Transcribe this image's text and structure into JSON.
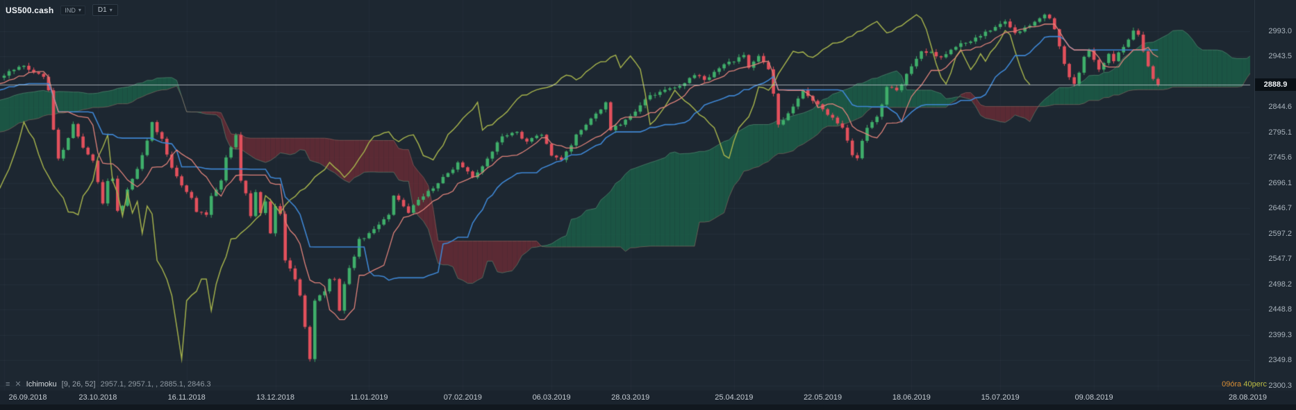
{
  "header": {
    "symbol": "US500.cash",
    "instrument_label": "IND",
    "timeframe": "D1"
  },
  "price_axis": {
    "current_price": "2888.9"
  },
  "legend": {
    "name": "Ichimoku",
    "params": "[9, 26, 52]",
    "values": "2957.1,  2957.1,  ,  2885.1,  2846.3"
  },
  "countdown": {
    "hours": "09óra",
    "minutes": "40perc"
  },
  "chart_data": {
    "type": "candlestick",
    "symbol": "US500.cash",
    "timeframe": "D1",
    "title": "US500.cash D1 with Ichimoku [9, 26, 52]",
    "indicator": {
      "name": "Ichimoku",
      "params": [
        9,
        26,
        52
      ],
      "displacement": 26,
      "display_values": [
        2957.1,
        2957.1,
        null,
        2885.1,
        2846.3
      ]
    },
    "last_price": 2888.9,
    "y_axis": {
      "top_label": 2993.0,
      "bottom_label": 2300.3,
      "step": 49.5
    },
    "y_ticks": [
      "2993.0",
      "2943.5",
      "2844.6",
      "2795.1",
      "2745.6",
      "2696.1",
      "2646.7",
      "2597.2",
      "2547.7",
      "2498.2",
      "2448.8",
      "2399.3",
      "2349.8",
      "2300.3"
    ],
    "x_ticks": [
      {
        "label": "26.09.2018",
        "bar": 0
      },
      {
        "label": "23.10.2018",
        "bar": 19
      },
      {
        "label": "16.11.2018",
        "bar": 37
      },
      {
        "label": "13.12.2018",
        "bar": 55
      },
      {
        "label": "11.01.2019",
        "bar": 74
      },
      {
        "label": "07.02.2019",
        "bar": 93
      },
      {
        "label": "06.03.2019",
        "bar": 111
      },
      {
        "label": "28.03.2019",
        "bar": 127
      },
      {
        "label": "25.04.2019",
        "bar": 148
      },
      {
        "label": "22.05.2019",
        "bar": 166
      },
      {
        "label": "18.06.2019",
        "bar": 184
      },
      {
        "label": "15.07.2019",
        "bar": 202
      },
      {
        "label": "09.08.2019",
        "bar": 221
      },
      {
        "label": "28.08.2019",
        "bar": 234,
        "pin_right": true
      }
    ],
    "bars_total": 235,
    "future_bars": 26,
    "pre_bars": 80,
    "anchors": [
      [
        -80,
        2700
      ],
      [
        -70,
        2758
      ],
      [
        -60,
        2788
      ],
      [
        -50,
        2812
      ],
      [
        -40,
        2857
      ],
      [
        -30,
        2874
      ],
      [
        -25,
        2890
      ],
      [
        -20,
        2896
      ],
      [
        -16,
        2856
      ],
      [
        -12,
        2871
      ],
      [
        -8,
        2878
      ],
      [
        -4,
        2897
      ],
      [
        -1,
        2903
      ],
      [
        0,
        2906
      ],
      [
        2,
        2920
      ],
      [
        4,
        2924
      ],
      [
        6,
        2913
      ],
      [
        8,
        2902
      ],
      [
        9,
        2880
      ],
      [
        10,
        2800
      ],
      [
        11,
        2745
      ],
      [
        12,
        2760
      ],
      [
        13,
        2784
      ],
      [
        14,
        2810
      ],
      [
        16,
        2766
      ],
      [
        18,
        2740
      ],
      [
        20,
        2656
      ],
      [
        21,
        2698
      ],
      [
        22,
        2705
      ],
      [
        23,
        2641
      ],
      [
        24,
        2650
      ],
      [
        25,
        2682
      ],
      [
        27,
        2723
      ],
      [
        29,
        2778
      ],
      [
        30,
        2814
      ],
      [
        32,
        2781
      ],
      [
        34,
        2726
      ],
      [
        36,
        2690
      ],
      [
        38,
        2668
      ],
      [
        39,
        2642
      ],
      [
        41,
        2632
      ],
      [
        42,
        2670
      ],
      [
        44,
        2700
      ],
      [
        45,
        2744
      ],
      [
        47,
        2790
      ],
      [
        48,
        2700
      ],
      [
        49,
        2677
      ],
      [
        50,
        2633
      ],
      [
        51,
        2680
      ],
      [
        52,
        2638
      ],
      [
        53,
        2660
      ],
      [
        54,
        2600
      ],
      [
        55,
        2651
      ],
      [
        56,
        2636
      ],
      [
        57,
        2546
      ],
      [
        58,
        2530
      ],
      [
        59,
        2507
      ],
      [
        60,
        2478
      ],
      [
        61,
        2417
      ],
      [
        62,
        2351
      ],
      [
        63,
        2468
      ],
      [
        64,
        2475
      ],
      [
        65,
        2486
      ],
      [
        66,
        2507
      ],
      [
        67,
        2510
      ],
      [
        68,
        2448
      ],
      [
        69,
        2500
      ],
      [
        70,
        2532
      ],
      [
        71,
        2550
      ],
      [
        72,
        2585
      ],
      [
        74,
        2596
      ],
      [
        76,
        2616
      ],
      [
        78,
        2635
      ],
      [
        79,
        2671
      ],
      [
        80,
        2664
      ],
      [
        82,
        2639
      ],
      [
        84,
        2665
      ],
      [
        86,
        2680
      ],
      [
        88,
        2696
      ],
      [
        89,
        2706
      ],
      [
        91,
        2724
      ],
      [
        92,
        2738
      ],
      [
        94,
        2720
      ],
      [
        95,
        2707
      ],
      [
        97,
        2730
      ],
      [
        98,
        2745
      ],
      [
        100,
        2775
      ],
      [
        101,
        2785
      ],
      [
        103,
        2792
      ],
      [
        104,
        2796
      ],
      [
        106,
        2775
      ],
      [
        107,
        2784
      ],
      [
        109,
        2793
      ],
      [
        110,
        2772
      ],
      [
        111,
        2749
      ],
      [
        113,
        2743
      ],
      [
        115,
        2771
      ],
      [
        116,
        2789
      ],
      [
        118,
        2810
      ],
      [
        119,
        2822
      ],
      [
        121,
        2840
      ],
      [
        122,
        2854
      ],
      [
        123,
        2801
      ],
      [
        125,
        2811
      ],
      [
        126,
        2818
      ],
      [
        127,
        2827
      ],
      [
        128,
        2834
      ],
      [
        130,
        2858
      ],
      [
        131,
        2867
      ],
      [
        133,
        2874
      ],
      [
        134,
        2879
      ],
      [
        136,
        2884
      ],
      [
        137,
        2888
      ],
      [
        139,
        2900
      ],
      [
        140,
        2907
      ],
      [
        142,
        2900
      ],
      [
        143,
        2905
      ],
      [
        145,
        2918
      ],
      [
        146,
        2926
      ],
      [
        148,
        2936
      ],
      [
        150,
        2946
      ],
      [
        151,
        2924
      ],
      [
        152,
        2932
      ],
      [
        153,
        2945
      ],
      [
        154,
        2932
      ],
      [
        155,
        2918
      ],
      [
        156,
        2870
      ],
      [
        157,
        2811
      ],
      [
        158,
        2820
      ],
      [
        159,
        2834
      ],
      [
        161,
        2860
      ],
      [
        162,
        2876
      ],
      [
        163,
        2866
      ],
      [
        164,
        2856
      ],
      [
        165,
        2848
      ],
      [
        166,
        2840
      ],
      [
        167,
        2830
      ],
      [
        168,
        2822
      ],
      [
        169,
        2812
      ],
      [
        170,
        2802
      ],
      [
        171,
        2780
      ],
      [
        172,
        2752
      ],
      [
        173,
        2744
      ],
      [
        174,
        2780
      ],
      [
        175,
        2803
      ],
      [
        176,
        2815
      ],
      [
        177,
        2826
      ],
      [
        178,
        2852
      ],
      [
        179,
        2886
      ],
      [
        180,
        2882
      ],
      [
        181,
        2879
      ],
      [
        182,
        2890
      ],
      [
        184,
        2926
      ],
      [
        186,
        2954
      ],
      [
        187,
        2952
      ],
      [
        188,
        2950
      ],
      [
        189,
        2946
      ],
      [
        190,
        2942
      ],
      [
        191,
        2950
      ],
      [
        193,
        2964
      ],
      [
        195,
        2970
      ],
      [
        196,
        2973
      ],
      [
        197,
        2980
      ],
      [
        198,
        2985
      ],
      [
        199,
        2990
      ],
      [
        200,
        2995
      ],
      [
        201,
        3000
      ],
      [
        203,
        3014
      ],
      [
        205,
        2990
      ],
      [
        207,
        3000
      ],
      [
        209,
        3012
      ],
      [
        211,
        3026
      ],
      [
        212,
        3018
      ],
      [
        213,
        2995
      ],
      [
        214,
        2962
      ],
      [
        215,
        2930
      ],
      [
        216,
        2905
      ],
      [
        217,
        2888
      ],
      [
        218,
        2912
      ],
      [
        219,
        2945
      ],
      [
        220,
        2958
      ],
      [
        221,
        2938
      ],
      [
        222,
        2920
      ],
      [
        223,
        2932
      ],
      [
        224,
        2950
      ],
      [
        225,
        2936
      ],
      [
        226,
        2950
      ],
      [
        227,
        2964
      ],
      [
        228,
        2976
      ],
      [
        229,
        2993
      ],
      [
        230,
        2986
      ],
      [
        231,
        2955
      ],
      [
        232,
        2922
      ],
      [
        233,
        2900
      ],
      [
        234,
        2888.9
      ]
    ],
    "colors": {
      "background": "#1d2731",
      "up": "#3fae6a",
      "down": "#e2505c",
      "tenkan": "#e0837b",
      "kijun": "#3f87d4",
      "chikou": "#a4b14c",
      "cloud_bull": "rgba(27,97,74,0.8)",
      "cloud_bear": "rgba(112,44,53,0.75)",
      "span_a_line": "rgba(125,195,155,0.4)",
      "span_b_line": "rgba(205,135,120,0.4)",
      "current_line": "rgba(205,212,218,0.75)",
      "grid": "rgba(170,185,200,0.055)",
      "vgrid": "rgba(170,185,200,0.04)"
    }
  }
}
